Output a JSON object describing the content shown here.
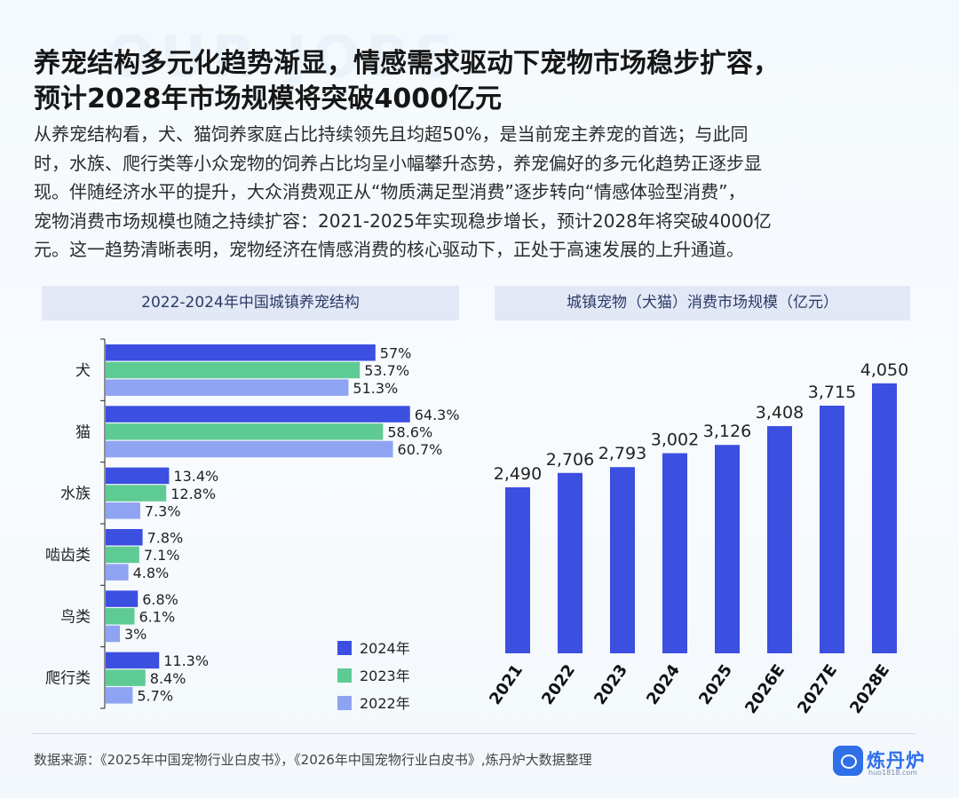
{
  "header": {
    "watermark": "OUR JOBS",
    "title_lines": [
      "养宠结构多元化趋势渐显，情感需求驱动下宠物市场稳步扩容，",
      "预计2028年市场规模将突破4000亿元"
    ],
    "body_lines": [
      "从养宠结构看，犬、猫饲养家庭占比持续领先且均超50%，是当前宠主养宠的首选；与此同",
      "时，水族、爬行类等小众宠物的饲养占比均呈小幅攀升态势，养宠偏好的多元化趋势正逐步显",
      "现。伴随经济水平的提升，大众消费观正从“物质满足型消费”逐步转向“情感体验型消费”，",
      "宠物消费市场规模也随之持续扩容：2021-2025年实现稳步增长，预计2028年将突破4000亿",
      "元。这一趋势清晰表明，宠物经济在情感消费的核心驱动下，正处于高速发展的上升通道。"
    ]
  },
  "chart_data": [
    {
      "type": "bar",
      "orientation": "horizontal",
      "title": "2022-2024年中国城镇养宠结构",
      "categories": [
        "犬",
        "猫",
        "水族",
        "啮齿类",
        "鸟类",
        "爬行类"
      ],
      "series": [
        {
          "name": "2024年",
          "color": "#3b4fe0",
          "values": [
            57,
            64.3,
            13.4,
            7.8,
            6.8,
            11.3
          ],
          "labels": [
            "57%",
            "64.3%",
            "13.4%",
            "7.8%",
            "6.8%",
            "11.3%"
          ]
        },
        {
          "name": "2023年",
          "color": "#5ecb94",
          "values": [
            53.7,
            58.6,
            12.8,
            7.1,
            6.1,
            8.4
          ],
          "labels": [
            "53.7%",
            "58.6%",
            "12.8%",
            "7.1%",
            "6.1%",
            "8.4%"
          ]
        },
        {
          "name": "2022年",
          "color": "#8fa3f3",
          "values": [
            51.3,
            60.7,
            7.3,
            4.8,
            3,
            5.7
          ],
          "labels": [
            "51.3%",
            "60.7%",
            "7.3%",
            "4.8%",
            "3%",
            "5.7%"
          ]
        }
      ],
      "legend": "bottom-right",
      "unit": "%"
    },
    {
      "type": "bar",
      "orientation": "vertical",
      "title": "城镇宠物（犬猫）消费市场规模（亿元）",
      "categories": [
        "2021",
        "2022",
        "2023",
        "2024",
        "2025",
        "2026E",
        "2027E",
        "2028E"
      ],
      "values": [
        2490,
        2706,
        2793,
        3002,
        3126,
        3408,
        3715,
        4050
      ],
      "labels": [
        "2,490",
        "2,706",
        "2,793",
        "3,002",
        "3,126",
        "3,408",
        "3,715",
        "4,050"
      ],
      "color": "#3b4fe0"
    }
  ],
  "footer": {
    "source": "数据来源：《2025年中国宠物行业白皮书》，《2026年中国宠物行业白皮书》,炼丹炉大数据整理",
    "logo_text": "炼丹炉",
    "logo_url": "huo1818.com"
  }
}
